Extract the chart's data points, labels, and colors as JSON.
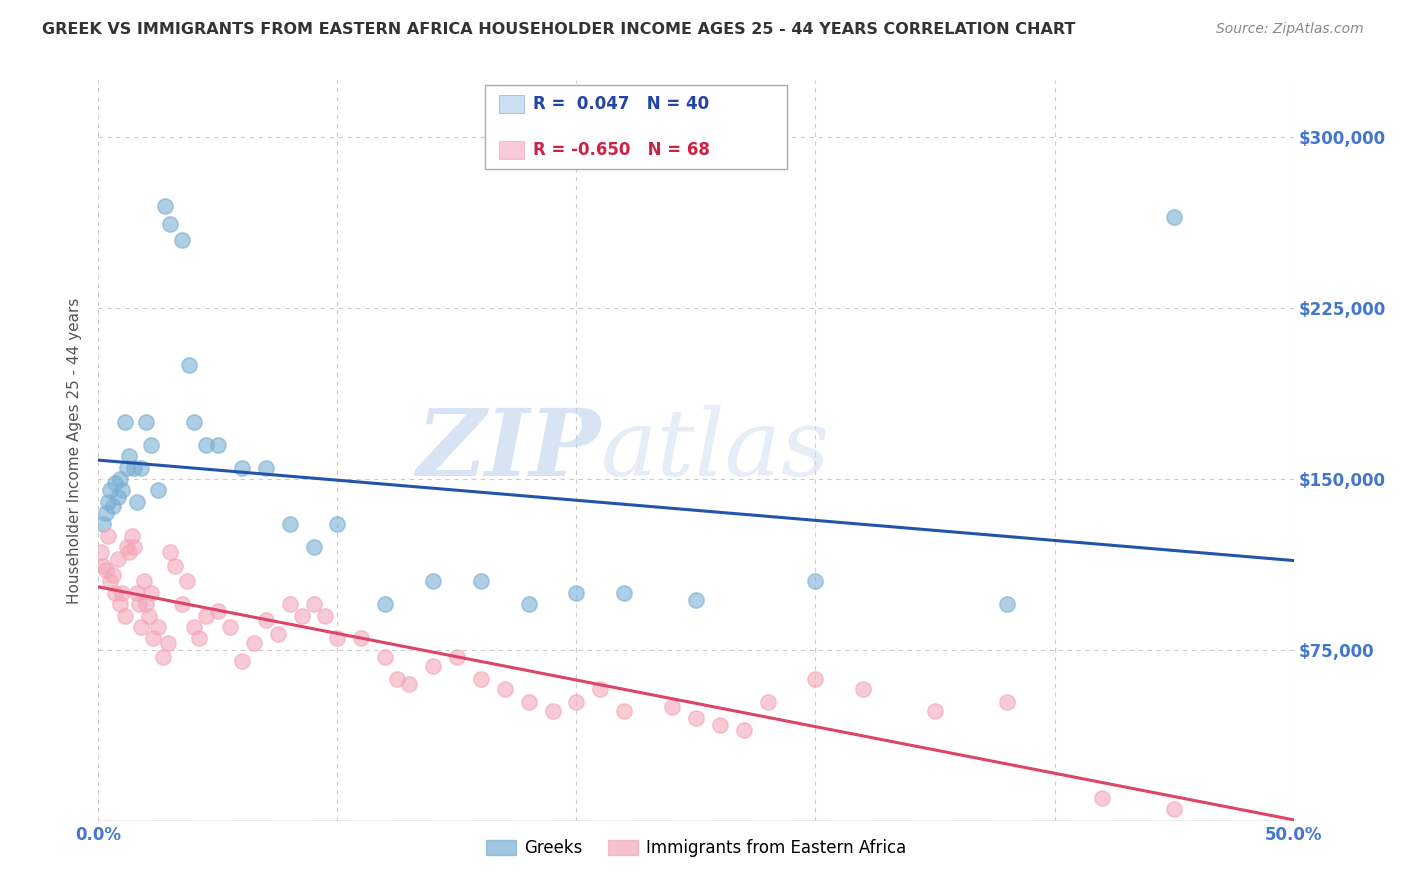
{
  "title": "GREEK VS IMMIGRANTS FROM EASTERN AFRICA HOUSEHOLDER INCOME AGES 25 - 44 YEARS CORRELATION CHART",
  "source": "Source: ZipAtlas.com",
  "ylabel": "Householder Income Ages 25 - 44 years",
  "xlim": [
    0.0,
    50.0
  ],
  "ylim": [
    0,
    325000
  ],
  "yticks": [
    0,
    75000,
    150000,
    225000,
    300000
  ],
  "xtick_vals": [
    0,
    10,
    20,
    30,
    40,
    50
  ],
  "blue_color": "#7BAFD4",
  "pink_color": "#F4A7B9",
  "blue_line_color": "#2255AA",
  "pink_line_color": "#DD4466",
  "axis_color": "#4477CC",
  "grid_color": "#CCCCCC",
  "watermark_color": "#D0DCF0",
  "title_color": "#333333",
  "source_color": "#888888",
  "blue_scatter_x": [
    0.2,
    0.3,
    0.4,
    0.5,
    0.6,
    0.7,
    0.8,
    0.9,
    1.0,
    1.1,
    1.2,
    1.3,
    1.5,
    1.6,
    1.8,
    2.0,
    2.2,
    2.5,
    2.8,
    3.0,
    3.5,
    3.8,
    4.0,
    4.5,
    5.0,
    6.0,
    7.0,
    8.0,
    9.0,
    10.0,
    12.0,
    14.0,
    16.0,
    18.0,
    20.0,
    22.0,
    25.0,
    30.0,
    38.0,
    45.0
  ],
  "blue_scatter_y": [
    130000,
    135000,
    140000,
    145000,
    138000,
    148000,
    142000,
    150000,
    145000,
    175000,
    155000,
    160000,
    155000,
    140000,
    155000,
    175000,
    165000,
    145000,
    270000,
    262000,
    255000,
    200000,
    175000,
    165000,
    165000,
    155000,
    155000,
    130000,
    120000,
    130000,
    95000,
    105000,
    105000,
    95000,
    100000,
    100000,
    97000,
    105000,
    95000,
    265000
  ],
  "pink_scatter_x": [
    0.1,
    0.2,
    0.3,
    0.4,
    0.5,
    0.6,
    0.7,
    0.8,
    0.9,
    1.0,
    1.1,
    1.2,
    1.3,
    1.4,
    1.5,
    1.6,
    1.7,
    1.8,
    1.9,
    2.0,
    2.1,
    2.2,
    2.3,
    2.5,
    2.7,
    2.9,
    3.0,
    3.2,
    3.5,
    3.7,
    4.0,
    4.2,
    4.5,
    5.0,
    5.5,
    6.0,
    6.5,
    7.0,
    7.5,
    8.0,
    8.5,
    9.0,
    9.5,
    10.0,
    11.0,
    12.0,
    12.5,
    13.0,
    14.0,
    15.0,
    16.0,
    17.0,
    18.0,
    19.0,
    20.0,
    21.0,
    22.0,
    24.0,
    25.0,
    26.0,
    27.0,
    28.0,
    30.0,
    32.0,
    35.0,
    38.0,
    42.0,
    45.0
  ],
  "pink_scatter_y": [
    118000,
    112000,
    110000,
    125000,
    105000,
    108000,
    100000,
    115000,
    95000,
    100000,
    90000,
    120000,
    118000,
    125000,
    120000,
    100000,
    95000,
    85000,
    105000,
    95000,
    90000,
    100000,
    80000,
    85000,
    72000,
    78000,
    118000,
    112000,
    95000,
    105000,
    85000,
    80000,
    90000,
    92000,
    85000,
    70000,
    78000,
    88000,
    82000,
    95000,
    90000,
    95000,
    90000,
    80000,
    80000,
    72000,
    62000,
    60000,
    68000,
    72000,
    62000,
    58000,
    52000,
    48000,
    52000,
    58000,
    48000,
    50000,
    45000,
    42000,
    40000,
    52000,
    62000,
    58000,
    48000,
    52000,
    10000,
    5000
  ]
}
